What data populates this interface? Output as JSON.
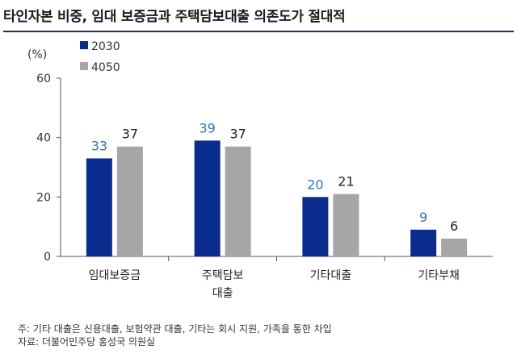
{
  "title": "타인자본 비중, 임대 보증금과 주택담보대출 의존도가 절대적",
  "chart_data": {
    "type": "bar",
    "unit_label": "(%)",
    "categories": [
      [
        "임대보증금"
      ],
      [
        "주택담보",
        "대출"
      ],
      [
        "기타대출"
      ],
      [
        "기타부채"
      ]
    ],
    "series": [
      {
        "name": "2030",
        "values": [
          33,
          39,
          20,
          9
        ],
        "color": "#0a2c8f",
        "label_color": "#2e75b6"
      },
      {
        "name": "4050",
        "values": [
          37,
          37,
          21,
          6
        ],
        "color": "#a6a6a6",
        "label_color": "#222222"
      }
    ],
    "ylim": [
      0,
      60
    ],
    "yticks": [
      0,
      20,
      40,
      60
    ],
    "grid": false,
    "legend_position": "top-left"
  },
  "footnotes": {
    "note": "주: 기타 대출은 신용대출, 보험약관 대출, 기타는 회시 지원, 가족을 통한 차입",
    "source": "자료: 더불어민주당 홍성국 의원실"
  }
}
